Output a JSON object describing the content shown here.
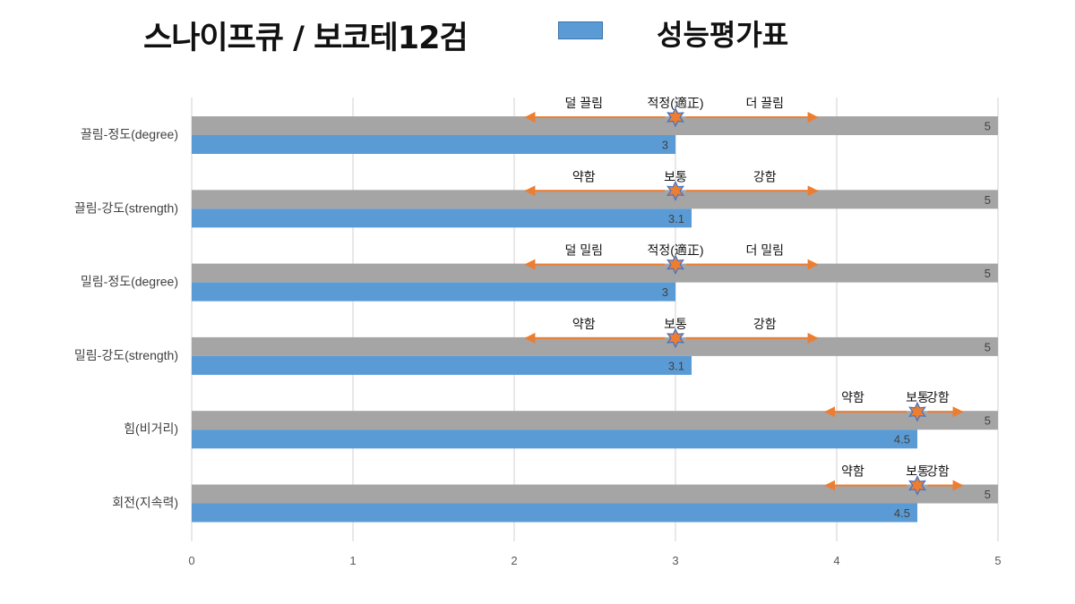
{
  "header": {
    "title": "스나이프큐 / 보코테12검",
    "legend_label": "성능평가표",
    "legend_color": "#5b9bd5"
  },
  "colors": {
    "value_bar": "#5b9bd5",
    "max_bar": "#a5a5a5",
    "arrow": "#ed7d31",
    "star_fill": "#ed7d31",
    "star_stroke": "#4472c4",
    "grid": "#d9d9d9"
  },
  "chart_data": {
    "type": "bar",
    "orientation": "horizontal",
    "xlim": [
      0,
      5
    ],
    "x_ticks": [
      "0",
      "1",
      "2",
      "3",
      "4",
      "5"
    ],
    "grid": true,
    "categories": [
      "끌림-정도(degree)",
      "끌림-강도(strength)",
      "밀림-정도(degree)",
      "밀림-강도(strength)",
      "힘(비거리)",
      "회전(지속력)"
    ],
    "series": [
      {
        "values": [
          5,
          5,
          5,
          5,
          5,
          5
        ],
        "labels": [
          "5",
          "5",
          "5",
          "5",
          "5",
          "5"
        ]
      },
      {
        "values": [
          3,
          3.1,
          3,
          3.1,
          4.5,
          4.5
        ],
        "labels": [
          "3",
          "3.1",
          "3",
          "3.1",
          "4.5",
          "4.5"
        ]
      }
    ],
    "annotations": [
      {
        "left": "덜 끌림",
        "center": "적정(適正)",
        "right": "더 끌림",
        "marker": 3,
        "arrow_from": 2.07,
        "arrow_to": 3.88
      },
      {
        "left": "약함",
        "center": "보통",
        "right": "강함",
        "marker": 3,
        "arrow_from": 2.07,
        "arrow_to": 3.88
      },
      {
        "left": "덜 밀림",
        "center": "적정(適正)",
        "right": "더 밀림",
        "marker": 3,
        "arrow_from": 2.07,
        "arrow_to": 3.88
      },
      {
        "left": "약함",
        "center": "보통",
        "right": "강함",
        "marker": 3,
        "arrow_from": 2.07,
        "arrow_to": 3.88
      },
      {
        "left": "약함",
        "center": "보통",
        "right": "강함",
        "marker": 4.5,
        "arrow_from": 3.93,
        "arrow_to": 4.78
      },
      {
        "left": "약함",
        "center": "보통",
        "right": "강함",
        "marker": 4.5,
        "arrow_from": 3.93,
        "arrow_to": 4.78
      }
    ]
  }
}
